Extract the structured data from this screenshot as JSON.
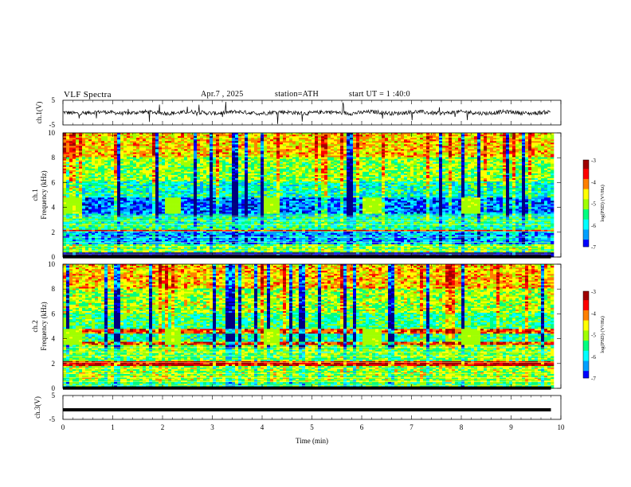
{
  "header": {
    "title": "VLF Spectra",
    "date": "Apr.7 , 2025",
    "station": "station=ATH",
    "start": "start UT = 1 :40:0"
  },
  "chart_data": [
    {
      "type": "line",
      "panel": "ch1_waveform",
      "ylabel": "ch.1(V)",
      "ylim": [
        -5,
        5
      ],
      "yticks": [
        "5",
        "-5"
      ],
      "xlim": [
        0,
        10
      ],
      "x_end": 9.8,
      "baseline": 0,
      "series": [
        {
          "values_summary": "noise around 0 V with spikes up to ±5 V"
        }
      ]
    },
    {
      "type": "heatmap",
      "panel": "ch1_spectrogram",
      "ylabel": "ch.1 Frequency (kHz)",
      "ylim": [
        0,
        10
      ],
      "yticks": [
        "0",
        "2",
        "4",
        "6",
        "8",
        "10"
      ],
      "xlim": [
        0,
        10
      ],
      "x_end": 9.8,
      "colorbar": {
        "label": "log(PSD) (V²/Hz)",
        "range": [
          -7,
          -3
        ],
        "ticks": [
          "-3",
          "-4",
          "-5",
          "-6",
          "-7"
        ]
      },
      "bands": [
        {
          "from": 0.0,
          "to": 0.3,
          "value": -7.5
        },
        {
          "from": 0.3,
          "to": 1.0,
          "value": -5.2
        },
        {
          "from": 1.0,
          "to": 2.0,
          "value": -6.3
        },
        {
          "from": 2.0,
          "to": 2.2,
          "value": -3.6
        },
        {
          "from": 2.2,
          "to": 3.2,
          "value": -5.6
        },
        {
          "from": 3.2,
          "to": 3.5,
          "value": -6.0
        },
        {
          "from": 3.5,
          "to": 4.7,
          "value": -6.6
        },
        {
          "from": 4.7,
          "to": 6.0,
          "value": -5.8
        },
        {
          "from": 6.0,
          "to": 8.0,
          "value": -5.1
        },
        {
          "from": 8.0,
          "to": 10.0,
          "value": -4.5
        }
      ],
      "green_patches_min": [
        0.0,
        2.0,
        4.0,
        6.0,
        8.0
      ]
    },
    {
      "type": "heatmap",
      "panel": "ch2_spectrogram",
      "ylabel": "ch.2 Frequency (kHz)",
      "ylim": [
        0,
        10
      ],
      "yticks": [
        "0",
        "2",
        "4",
        "6",
        "8",
        "10"
      ],
      "xlim": [
        0,
        10
      ],
      "x_end": 9.8,
      "colorbar": {
        "label": "log(PSD) (V²/Hz)",
        "range": [
          -7,
          -3
        ],
        "ticks": [
          "-3",
          "-4",
          "-5",
          "-6",
          "-7"
        ]
      },
      "bands": [
        {
          "from": 0.0,
          "to": 0.4,
          "value": -5.5
        },
        {
          "from": 0.4,
          "to": 1.8,
          "value": -5.0
        },
        {
          "from": 1.8,
          "to": 2.2,
          "value": -3.4
        },
        {
          "from": 2.2,
          "to": 3.4,
          "value": -5.2
        },
        {
          "from": 3.4,
          "to": 3.7,
          "value": -3.8
        },
        {
          "from": 3.7,
          "to": 4.4,
          "value": -5.7
        },
        {
          "from": 4.4,
          "to": 4.7,
          "value": -3.9
        },
        {
          "from": 4.7,
          "to": 6.0,
          "value": -5.5
        },
        {
          "from": 6.0,
          "to": 8.0,
          "value": -5.0
        },
        {
          "from": 8.0,
          "to": 10.0,
          "value": -4.4
        }
      ],
      "green_patches_min": [
        0.0,
        2.0,
        4.0,
        6.0,
        8.0
      ]
    },
    {
      "type": "line",
      "panel": "ch3_waveform",
      "ylabel": "ch.3(V)",
      "ylim": [
        -5,
        5
      ],
      "yticks": [
        "5",
        "-5"
      ],
      "xlim": [
        0,
        10
      ],
      "x_end": 9.8,
      "series": [
        {
          "constant_value": -1.0
        }
      ]
    }
  ],
  "x_axis": {
    "label": "Time (min)",
    "ticks": [
      "0",
      "1",
      "2",
      "3",
      "4",
      "5",
      "6",
      "7",
      "8",
      "9",
      "10"
    ]
  },
  "colors": {
    "colormap": [
      "#000080",
      "#0000ff",
      "#00a0ff",
      "#00ffff",
      "#00ff80",
      "#a0ff00",
      "#ffff00",
      "#ff8000",
      "#ff0000",
      "#a00000"
    ]
  }
}
